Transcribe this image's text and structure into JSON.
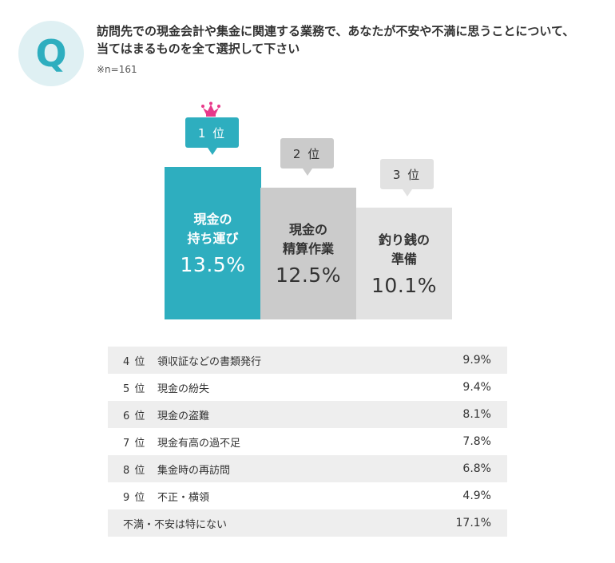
{
  "header": {
    "q_mark": "Q",
    "question_line1": "訪問先での現金会計や集金に関連する業務で、あなたが不安や不満に思うことについて、",
    "question_line2": "当てはまるものを全て選択して下さい",
    "sample": "※n=161"
  },
  "colors": {
    "accent": "#2eaebf",
    "rank2": "#cbcbcb",
    "rank3": "#e2e2e2",
    "crown": "#e8388a",
    "row_shade": "#eeeeee"
  },
  "chart_data": {
    "type": "bar",
    "top3": [
      {
        "rank_label": "1 位",
        "line1": "現金の",
        "line2": "持ち運び",
        "value": 13.5,
        "value_label": "13.5%"
      },
      {
        "rank_label": "2 位",
        "line1": "現金の",
        "line2": "精算作業",
        "value": 12.5,
        "value_label": "12.5%"
      },
      {
        "rank_label": "3 位",
        "line1": "釣り銭の",
        "line2": "準備",
        "value": 10.1,
        "value_label": "10.1%"
      }
    ],
    "rows": [
      {
        "rank_label": "4 位",
        "item": "領収証などの書類発行",
        "value": 9.9,
        "value_label": "9.9%"
      },
      {
        "rank_label": "5 位",
        "item": "現金の紛失",
        "value": 9.4,
        "value_label": "9.4%"
      },
      {
        "rank_label": "6 位",
        "item": "現金の盗難",
        "value": 8.1,
        "value_label": "8.1%"
      },
      {
        "rank_label": "7 位",
        "item": "現金有高の過不足",
        "value": 7.8,
        "value_label": "7.8%"
      },
      {
        "rank_label": "8 位",
        "item": "集金時の再訪問",
        "value": 6.8,
        "value_label": "6.8%"
      },
      {
        "rank_label": "9 位",
        "item": "不正・横領",
        "value": 4.9,
        "value_label": "4.9%"
      },
      {
        "rank_label": "",
        "item": "不満・不安は特にない",
        "value": 17.1,
        "value_label": "17.1%"
      }
    ]
  }
}
